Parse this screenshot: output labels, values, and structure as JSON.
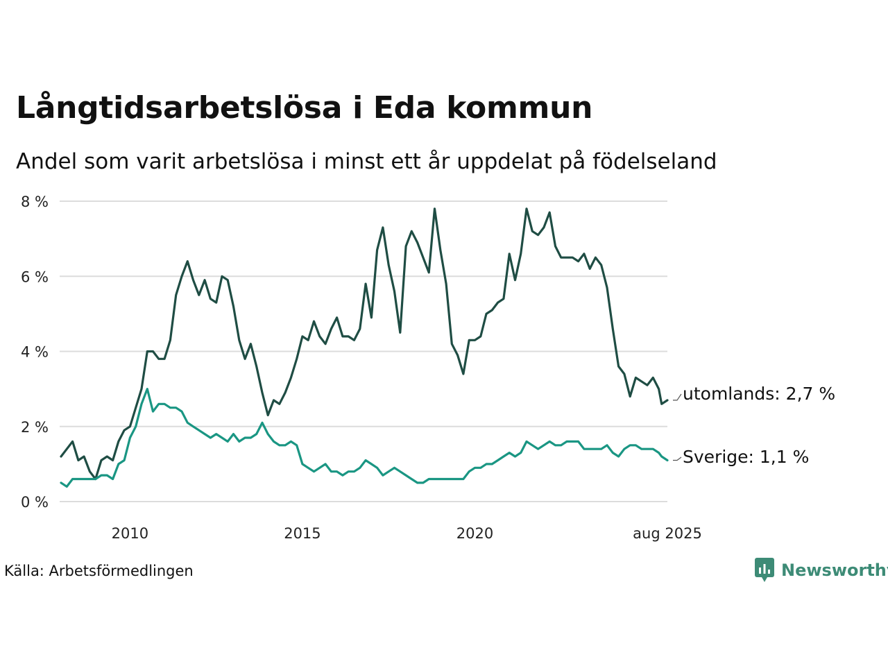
{
  "title": "Långtidsarbetslösa i Eda kommun",
  "subtitle": "Andel som varit arbetslösa i minst ett år uppdelat på födelseland",
  "source": "Källa: Arbetsförmedlingen",
  "brand": {
    "name": "Newsworthy",
    "icon": "newsworthy-logo-icon",
    "color": "#3d8b76"
  },
  "colors": {
    "utomlands": "#1f4d44",
    "sverige": "#1a9683",
    "grid": "#dcdcdc"
  },
  "chart_data": {
    "type": "line",
    "title": "Långtidsarbetslösa i Eda kommun",
    "subtitle": "Andel som varit arbetslösa i minst ett år uppdelat på födelseland",
    "x_start": "2008-01",
    "x_end": "2025-08",
    "x_ticks": [
      {
        "label": "2010",
        "date": "2010-01"
      },
      {
        "label": "2015",
        "date": "2015-01"
      },
      {
        "label": "2020",
        "date": "2020-01"
      },
      {
        "label": "aug 2025",
        "date": "2025-08"
      }
    ],
    "ylim": [
      0,
      8
    ],
    "y_ticks": [
      {
        "label": "0 %",
        "value": 0
      },
      {
        "label": "2 %",
        "value": 2
      },
      {
        "label": "4 %",
        "value": 4
      },
      {
        "label": "6 %",
        "value": 6
      },
      {
        "label": "8 %",
        "value": 8
      }
    ],
    "grid": true,
    "series": [
      {
        "name": "utomlands",
        "end_label": "utomlands: 2,7 %",
        "points": [
          [
            "2008-01",
            1.2
          ],
          [
            "2008-03",
            1.4
          ],
          [
            "2008-05",
            1.6
          ],
          [
            "2008-07",
            1.1
          ],
          [
            "2008-09",
            1.2
          ],
          [
            "2008-11",
            0.8
          ],
          [
            "2009-01",
            0.6
          ],
          [
            "2009-03",
            1.1
          ],
          [
            "2009-05",
            1.2
          ],
          [
            "2009-07",
            1.1
          ],
          [
            "2009-09",
            1.6
          ],
          [
            "2009-11",
            1.9
          ],
          [
            "2010-01",
            2.0
          ],
          [
            "2010-03",
            2.5
          ],
          [
            "2010-05",
            3.0
          ],
          [
            "2010-07",
            4.0
          ],
          [
            "2010-09",
            4.0
          ],
          [
            "2010-11",
            3.8
          ],
          [
            "2011-01",
            3.8
          ],
          [
            "2011-03",
            4.3
          ],
          [
            "2011-05",
            5.5
          ],
          [
            "2011-07",
            6.0
          ],
          [
            "2011-09",
            6.4
          ],
          [
            "2011-11",
            5.9
          ],
          [
            "2012-01",
            5.5
          ],
          [
            "2012-03",
            5.9
          ],
          [
            "2012-05",
            5.4
          ],
          [
            "2012-07",
            5.3
          ],
          [
            "2012-09",
            6.0
          ],
          [
            "2012-11",
            5.9
          ],
          [
            "2013-01",
            5.2
          ],
          [
            "2013-03",
            4.3
          ],
          [
            "2013-05",
            3.8
          ],
          [
            "2013-07",
            4.2
          ],
          [
            "2013-09",
            3.6
          ],
          [
            "2013-11",
            2.9
          ],
          [
            "2014-01",
            2.3
          ],
          [
            "2014-03",
            2.7
          ],
          [
            "2014-05",
            2.6
          ],
          [
            "2014-07",
            2.9
          ],
          [
            "2014-09",
            3.3
          ],
          [
            "2014-11",
            3.8
          ],
          [
            "2015-01",
            4.4
          ],
          [
            "2015-03",
            4.3
          ],
          [
            "2015-05",
            4.8
          ],
          [
            "2015-07",
            4.4
          ],
          [
            "2015-09",
            4.2
          ],
          [
            "2015-11",
            4.6
          ],
          [
            "2016-01",
            4.9
          ],
          [
            "2016-03",
            4.4
          ],
          [
            "2016-05",
            4.4
          ],
          [
            "2016-07",
            4.3
          ],
          [
            "2016-09",
            4.6
          ],
          [
            "2016-11",
            5.8
          ],
          [
            "2017-01",
            4.9
          ],
          [
            "2017-03",
            6.7
          ],
          [
            "2017-05",
            7.3
          ],
          [
            "2017-07",
            6.3
          ],
          [
            "2017-09",
            5.6
          ],
          [
            "2017-11",
            4.5
          ],
          [
            "2018-01",
            6.8
          ],
          [
            "2018-03",
            7.2
          ],
          [
            "2018-05",
            6.9
          ],
          [
            "2018-07",
            6.5
          ],
          [
            "2018-09",
            6.1
          ],
          [
            "2018-11",
            7.8
          ],
          [
            "2019-01",
            6.7
          ],
          [
            "2019-03",
            5.8
          ],
          [
            "2019-05",
            4.2
          ],
          [
            "2019-07",
            3.9
          ],
          [
            "2019-09",
            3.4
          ],
          [
            "2019-11",
            4.3
          ],
          [
            "2020-01",
            4.3
          ],
          [
            "2020-03",
            4.4
          ],
          [
            "2020-05",
            5.0
          ],
          [
            "2020-07",
            5.1
          ],
          [
            "2020-09",
            5.3
          ],
          [
            "2020-11",
            5.4
          ],
          [
            "2021-01",
            6.6
          ],
          [
            "2021-03",
            5.9
          ],
          [
            "2021-05",
            6.6
          ],
          [
            "2021-07",
            7.8
          ],
          [
            "2021-09",
            7.2
          ],
          [
            "2021-11",
            7.1
          ],
          [
            "2022-01",
            7.3
          ],
          [
            "2022-03",
            7.7
          ],
          [
            "2022-05",
            6.8
          ],
          [
            "2022-07",
            6.5
          ],
          [
            "2022-09",
            6.5
          ],
          [
            "2022-11",
            6.5
          ],
          [
            "2023-01",
            6.4
          ],
          [
            "2023-03",
            6.6
          ],
          [
            "2023-05",
            6.2
          ],
          [
            "2023-07",
            6.5
          ],
          [
            "2023-09",
            6.3
          ],
          [
            "2023-11",
            5.7
          ],
          [
            "2024-01",
            4.6
          ],
          [
            "2024-03",
            3.6
          ],
          [
            "2024-05",
            3.4
          ],
          [
            "2024-07",
            2.8
          ],
          [
            "2024-09",
            3.3
          ],
          [
            "2024-11",
            3.2
          ],
          [
            "2025-01",
            3.1
          ],
          [
            "2025-03",
            3.3
          ],
          [
            "2025-05",
            3.0
          ],
          [
            "2025-06",
            2.6
          ],
          [
            "2025-08",
            2.7
          ]
        ]
      },
      {
        "name": "Sverige",
        "end_label": "Sverige: 1,1 %",
        "points": [
          [
            "2008-01",
            0.5
          ],
          [
            "2008-03",
            0.4
          ],
          [
            "2008-05",
            0.6
          ],
          [
            "2008-07",
            0.6
          ],
          [
            "2008-09",
            0.6
          ],
          [
            "2008-11",
            0.6
          ],
          [
            "2009-01",
            0.6
          ],
          [
            "2009-03",
            0.7
          ],
          [
            "2009-05",
            0.7
          ],
          [
            "2009-07",
            0.6
          ],
          [
            "2009-09",
            1.0
          ],
          [
            "2009-11",
            1.1
          ],
          [
            "2010-01",
            1.7
          ],
          [
            "2010-03",
            2.0
          ],
          [
            "2010-05",
            2.6
          ],
          [
            "2010-07",
            3.0
          ],
          [
            "2010-09",
            2.4
          ],
          [
            "2010-11",
            2.6
          ],
          [
            "2011-01",
            2.6
          ],
          [
            "2011-03",
            2.5
          ],
          [
            "2011-05",
            2.5
          ],
          [
            "2011-07",
            2.4
          ],
          [
            "2011-09",
            2.1
          ],
          [
            "2011-11",
            2.0
          ],
          [
            "2012-01",
            1.9
          ],
          [
            "2012-03",
            1.8
          ],
          [
            "2012-05",
            1.7
          ],
          [
            "2012-07",
            1.8
          ],
          [
            "2012-09",
            1.7
          ],
          [
            "2012-11",
            1.6
          ],
          [
            "2013-01",
            1.8
          ],
          [
            "2013-03",
            1.6
          ],
          [
            "2013-05",
            1.7
          ],
          [
            "2013-07",
            1.7
          ],
          [
            "2013-09",
            1.8
          ],
          [
            "2013-11",
            2.1
          ],
          [
            "2014-01",
            1.8
          ],
          [
            "2014-03",
            1.6
          ],
          [
            "2014-05",
            1.5
          ],
          [
            "2014-07",
            1.5
          ],
          [
            "2014-09",
            1.6
          ],
          [
            "2014-11",
            1.5
          ],
          [
            "2015-01",
            1.0
          ],
          [
            "2015-03",
            0.9
          ],
          [
            "2015-05",
            0.8
          ],
          [
            "2015-07",
            0.9
          ],
          [
            "2015-09",
            1.0
          ],
          [
            "2015-11",
            0.8
          ],
          [
            "2016-01",
            0.8
          ],
          [
            "2016-03",
            0.7
          ],
          [
            "2016-05",
            0.8
          ],
          [
            "2016-07",
            0.8
          ],
          [
            "2016-09",
            0.9
          ],
          [
            "2016-11",
            1.1
          ],
          [
            "2017-01",
            1.0
          ],
          [
            "2017-03",
            0.9
          ],
          [
            "2017-05",
            0.7
          ],
          [
            "2017-07",
            0.8
          ],
          [
            "2017-09",
            0.9
          ],
          [
            "2017-11",
            0.8
          ],
          [
            "2018-01",
            0.7
          ],
          [
            "2018-03",
            0.6
          ],
          [
            "2018-05",
            0.5
          ],
          [
            "2018-07",
            0.5
          ],
          [
            "2018-09",
            0.6
          ],
          [
            "2018-11",
            0.6
          ],
          [
            "2019-01",
            0.6
          ],
          [
            "2019-03",
            0.6
          ],
          [
            "2019-05",
            0.6
          ],
          [
            "2019-07",
            0.6
          ],
          [
            "2019-09",
            0.6
          ],
          [
            "2019-11",
            0.8
          ],
          [
            "2020-01",
            0.9
          ],
          [
            "2020-03",
            0.9
          ],
          [
            "2020-05",
            1.0
          ],
          [
            "2020-07",
            1.0
          ],
          [
            "2020-09",
            1.1
          ],
          [
            "2020-11",
            1.2
          ],
          [
            "2021-01",
            1.3
          ],
          [
            "2021-03",
            1.2
          ],
          [
            "2021-05",
            1.3
          ],
          [
            "2021-07",
            1.6
          ],
          [
            "2021-09",
            1.5
          ],
          [
            "2021-11",
            1.4
          ],
          [
            "2022-01",
            1.5
          ],
          [
            "2022-03",
            1.6
          ],
          [
            "2022-05",
            1.5
          ],
          [
            "2022-07",
            1.5
          ],
          [
            "2022-09",
            1.6
          ],
          [
            "2022-11",
            1.6
          ],
          [
            "2023-01",
            1.6
          ],
          [
            "2023-03",
            1.4
          ],
          [
            "2023-05",
            1.4
          ],
          [
            "2023-07",
            1.4
          ],
          [
            "2023-09",
            1.4
          ],
          [
            "2023-11",
            1.5
          ],
          [
            "2024-01",
            1.3
          ],
          [
            "2024-03",
            1.2
          ],
          [
            "2024-05",
            1.4
          ],
          [
            "2024-07",
            1.5
          ],
          [
            "2024-09",
            1.5
          ],
          [
            "2024-11",
            1.4
          ],
          [
            "2025-01",
            1.4
          ],
          [
            "2025-03",
            1.4
          ],
          [
            "2025-05",
            1.3
          ],
          [
            "2025-06",
            1.2
          ],
          [
            "2025-08",
            1.1
          ]
        ]
      }
    ]
  }
}
